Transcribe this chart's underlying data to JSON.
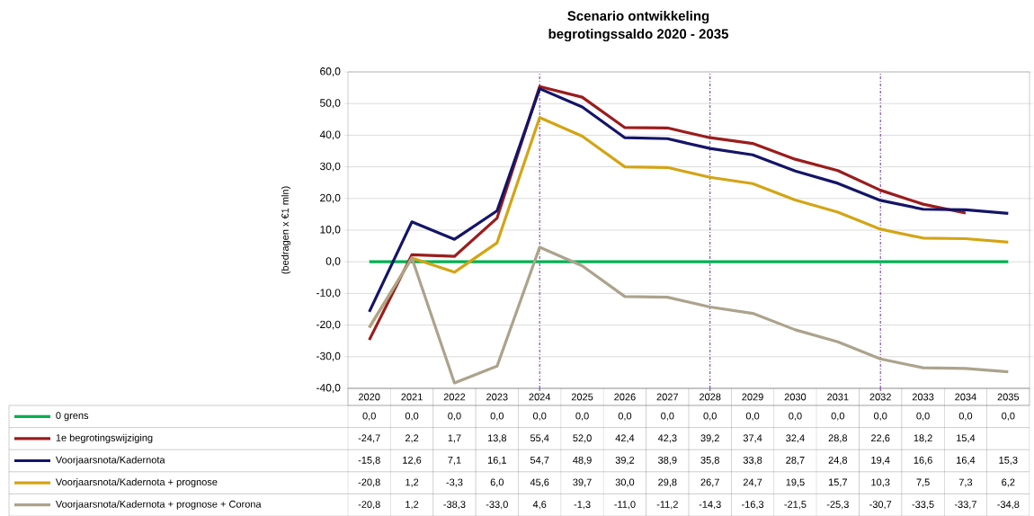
{
  "chart_data": {
    "type": "line",
    "title": "Scenario ontwikkeling",
    "subtitle": "begrotingssaldo  2020 - 2035",
    "ylabel": "(bedragen x €1 mln)",
    "categories": [
      "2020",
      "2021",
      "2022",
      "2023",
      "2024",
      "2025",
      "2026",
      "2027",
      "2028",
      "2029",
      "2030",
      "2031",
      "2032",
      "2033",
      "2034",
      "2035"
    ],
    "ylim": [
      -40,
      60
    ],
    "yticks": [
      {
        "value": -40,
        "label": "-40,0"
      },
      {
        "value": -30,
        "label": "-30,0"
      },
      {
        "value": -20,
        "label": "-20,0"
      },
      {
        "value": -10,
        "label": "-10,0"
      },
      {
        "value": 0,
        "label": "0,0"
      },
      {
        "value": 10,
        "label": "10,0"
      },
      {
        "value": 20,
        "label": "20,0"
      },
      {
        "value": 30,
        "label": "30,0"
      },
      {
        "value": 40,
        "label": "40,0"
      },
      {
        "value": 50,
        "label": "50,0"
      },
      {
        "value": 60,
        "label": "60,0"
      }
    ],
    "grid": "y",
    "legend": "bottom",
    "marker": "none",
    "line_style": "solid",
    "ref_lines": [
      {
        "axis": "x",
        "value": "2024",
        "color": "#7030a0",
        "line_style": "dashdot"
      },
      {
        "axis": "x",
        "value": "2028",
        "color": "#7030a0",
        "line_style": "dashdot"
      },
      {
        "axis": "x",
        "value": "2032",
        "color": "#7030a0",
        "line_style": "dashdot"
      }
    ],
    "series": [
      {
        "name": "0 grens",
        "color": "#00b050",
        "values": [
          0,
          0,
          0,
          0,
          0,
          0,
          0,
          0,
          0,
          0,
          0,
          0,
          0,
          0,
          0,
          0
        ],
        "value_labels": [
          "0,0",
          "0,0",
          "0,0",
          "0,0",
          "0,0",
          "0,0",
          "0,0",
          "0,0",
          "0,0",
          "0,0",
          "0,0",
          "0,0",
          "0,0",
          "0,0",
          "0,0",
          "0,0"
        ]
      },
      {
        "name": "1e begrotingswijziging",
        "color": "#9b1c1c",
        "values": [
          -24.7,
          2.2,
          1.7,
          13.8,
          55.4,
          52.0,
          42.4,
          42.3,
          39.2,
          37.4,
          32.4,
          28.8,
          22.6,
          18.2,
          15.4,
          null
        ],
        "value_labels": [
          "-24,7",
          "2,2",
          "1,7",
          "13,8",
          "55,4",
          "52,0",
          "42,4",
          "42,3",
          "39,2",
          "37,4",
          "32,4",
          "28,8",
          "22,6",
          "18,2",
          "15,4",
          null
        ]
      },
      {
        "name": "Voorjaarsnota/Kadernota",
        "color": "#141468",
        "values": [
          -15.8,
          12.6,
          7.1,
          16.1,
          54.7,
          48.9,
          39.2,
          38.9,
          35.8,
          33.8,
          28.7,
          24.8,
          19.4,
          16.6,
          16.4,
          15.3
        ],
        "value_labels": [
          "-15,8",
          "12,6",
          "7,1",
          "16,1",
          "54,7",
          "48,9",
          "39,2",
          "38,9",
          "35,8",
          "33,8",
          "28,7",
          "24,8",
          "19,4",
          "16,6",
          "16,4",
          "15,3"
        ]
      },
      {
        "name": "Voorjaarsnota/Kadernota + prognose",
        "color": "#d4a414",
        "values": [
          -20.8,
          1.2,
          -3.3,
          6.0,
          45.6,
          39.7,
          30.0,
          29.8,
          26.7,
          24.7,
          19.5,
          15.7,
          10.3,
          7.5,
          7.3,
          6.2
        ],
        "value_labels": [
          "-20,8",
          "1,2",
          "-3,3",
          "6,0",
          "45,6",
          "39,7",
          "30,0",
          "29,8",
          "26,7",
          "24,7",
          "19,5",
          "15,7",
          "10,3",
          "7,5",
          "7,3",
          "6,2"
        ]
      },
      {
        "name": "Voorjaarsnota/Kadernota + prognose + Corona",
        "color": "#aca38c",
        "values": [
          -20.8,
          1.2,
          -38.3,
          -33.0,
          4.6,
          -1.3,
          -11.0,
          -11.2,
          -14.3,
          -16.3,
          -21.5,
          -25.3,
          -30.7,
          -33.5,
          -33.7,
          -34.8
        ],
        "value_labels": [
          "-20,8",
          "1,2",
          "-38,3",
          "-33,0",
          "4,6",
          "-1,3",
          "-11,0",
          "-11,2",
          "-14,3",
          "-16,3",
          "-21,5",
          "-25,3",
          "-30,7",
          "-33,5",
          "-33,7",
          "-34,8"
        ]
      }
    ]
  }
}
